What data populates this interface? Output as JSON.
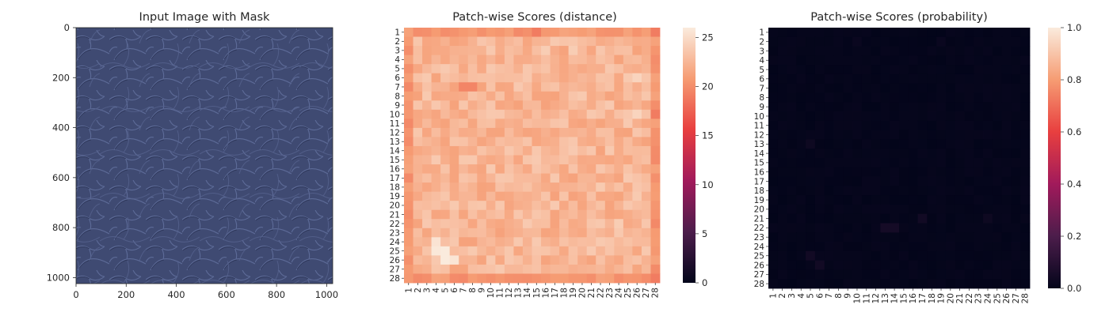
{
  "chart_data": [
    {
      "type": "image",
      "title": "Input Image with Mask",
      "xticks": [
        0,
        200,
        400,
        600,
        800,
        1000
      ],
      "yticks": [
        0,
        200,
        400,
        600,
        800,
        1000
      ],
      "xlim": [
        0,
        1024
      ],
      "ylim": [
        1024,
        0
      ],
      "image_description": "dark blue leather texture",
      "colors": {
        "base": "#3f4a72",
        "crease": "#5c6a98",
        "shadow": "#2a3354"
      }
    },
    {
      "type": "heatmap",
      "title": "Patch-wise Scores (distance)",
      "rows": [
        "1",
        "2",
        "3",
        "4",
        "5",
        "6",
        "7",
        "8",
        "9",
        "10",
        "11",
        "12",
        "13",
        "14",
        "15",
        "16",
        "17",
        "18",
        "19",
        "20",
        "21",
        "22",
        "23",
        "24",
        "25",
        "26",
        "27",
        "28"
      ],
      "cols": [
        "1",
        "2",
        "3",
        "4",
        "5",
        "6",
        "7",
        "8",
        "9",
        "10",
        "11",
        "12",
        "13",
        "14",
        "15",
        "16",
        "17",
        "18",
        "19",
        "20",
        "21",
        "22",
        "23",
        "24",
        "25",
        "26",
        "27",
        "28"
      ],
      "colorbar_ticks": [
        0,
        5,
        10,
        15,
        20,
        25
      ],
      "vmin": 0,
      "vmax": 26,
      "border_value": 20.5,
      "interior_value": 22.5,
      "hot_cells": [
        {
          "row": 24,
          "col": 4,
          "value": 25.5
        },
        {
          "row": 25,
          "col": 4,
          "value": 25.8
        },
        {
          "row": 25,
          "col": 5,
          "value": 26
        },
        {
          "row": 26,
          "col": 5,
          "value": 26
        },
        {
          "row": 26,
          "col": 6,
          "value": 25.6
        },
        {
          "row": 10,
          "col": 26,
          "value": 24.5
        },
        {
          "row": 6,
          "col": 26,
          "value": 24.5
        },
        {
          "row": 3,
          "col": 16,
          "value": 24
        },
        {
          "row": 3,
          "col": 19,
          "value": 24
        },
        {
          "row": 22,
          "col": 24,
          "value": 24
        }
      ],
      "cold_cells": [
        {
          "row": 7,
          "col": 7,
          "value": 19.5
        },
        {
          "row": 7,
          "col": 8,
          "value": 19.5
        },
        {
          "row": 1,
          "col": 15,
          "value": 19
        },
        {
          "row": 1,
          "col": 28,
          "value": 19
        },
        {
          "row": 28,
          "col": 28,
          "value": 19
        },
        {
          "row": 10,
          "col": 28,
          "value": 19
        }
      ]
    },
    {
      "type": "heatmap",
      "title": "Patch-wise Scores (probability)",
      "rows": [
        "1",
        "2",
        "3",
        "4",
        "5",
        "6",
        "7",
        "8",
        "9",
        "10",
        "11",
        "12",
        "13",
        "14",
        "15",
        "16",
        "17",
        "18",
        "19",
        "20",
        "21",
        "22",
        "23",
        "24",
        "25",
        "26",
        "27",
        "28"
      ],
      "cols": [
        "1",
        "2",
        "3",
        "4",
        "5",
        "6",
        "7",
        "8",
        "9",
        "10",
        "11",
        "12",
        "13",
        "14",
        "15",
        "16",
        "17",
        "18",
        "19",
        "20",
        "21",
        "22",
        "23",
        "24",
        "25",
        "26",
        "27",
        "28"
      ],
      "colorbar_ticks": [
        "0.0",
        "0.2",
        "0.4",
        "0.6",
        "0.8",
        "1.0"
      ],
      "vmin": 0,
      "vmax": 1,
      "background_value": 0.0,
      "hot_cells": [
        {
          "row": 22,
          "col": 13,
          "value": 0.05
        },
        {
          "row": 22,
          "col": 14,
          "value": 0.05
        },
        {
          "row": 21,
          "col": 17,
          "value": 0.04
        },
        {
          "row": 25,
          "col": 5,
          "value": 0.04
        },
        {
          "row": 26,
          "col": 6,
          "value": 0.04
        },
        {
          "row": 13,
          "col": 5,
          "value": 0.03
        },
        {
          "row": 21,
          "col": 24,
          "value": 0.03
        },
        {
          "row": 2,
          "col": 10,
          "value": 0.02
        },
        {
          "row": 2,
          "col": 19,
          "value": 0.02
        }
      ]
    }
  ],
  "colors": {
    "rocket": [
      "#03051a",
      "#4c1d4b",
      "#a11a5b",
      "#e83f3f",
      "#f69c73",
      "#faebdd"
    ]
  }
}
